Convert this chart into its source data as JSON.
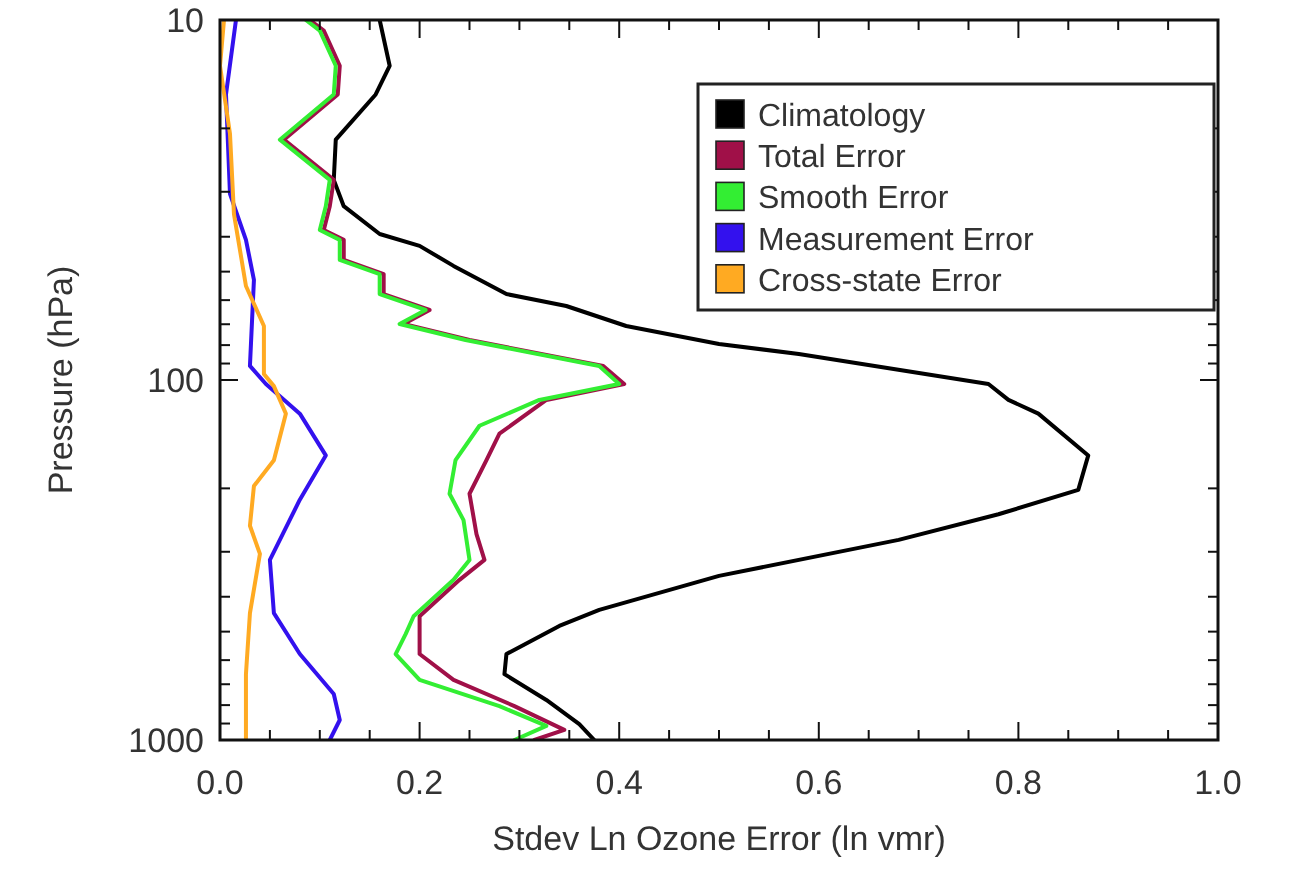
{
  "chart_data": {
    "type": "line",
    "xlabel": "Stdev Ln Ozone Error (ln vmr)",
    "ylabel": "Pressure (hPa)",
    "xlim": [
      0,
      1
    ],
    "xticks": [
      {
        "value": 0,
        "label": "0.0"
      },
      {
        "value": 0.05,
        "label": null
      },
      {
        "value": 0.1,
        "label": null
      },
      {
        "value": 0.15,
        "label": null
      },
      {
        "value": 0.2,
        "label": "0.2"
      },
      {
        "value": 0.25,
        "label": null
      },
      {
        "value": 0.3,
        "label": null
      },
      {
        "value": 0.35,
        "label": null
      },
      {
        "value": 0.4,
        "label": "0.4"
      },
      {
        "value": 0.45,
        "label": null
      },
      {
        "value": 0.5,
        "label": null
      },
      {
        "value": 0.55,
        "label": null
      },
      {
        "value": 0.6,
        "label": "0.6"
      },
      {
        "value": 0.65,
        "label": null
      },
      {
        "value": 0.7,
        "label": null
      },
      {
        "value": 0.75,
        "label": null
      },
      {
        "value": 0.8,
        "label": "0.8"
      },
      {
        "value": 0.85,
        "label": null
      },
      {
        "value": 0.9,
        "label": null
      },
      {
        "value": 0.95,
        "label": null
      },
      {
        "value": 1,
        "label": "1.0"
      }
    ],
    "ylim": [
      1000,
      10
    ],
    "log": "y",
    "yticks": [
      10,
      {
        "value": 20,
        "label": null
      },
      {
        "value": 30,
        "label": null
      },
      {
        "value": 40,
        "label": null
      },
      {
        "value": 50,
        "label": null
      },
      {
        "value": 60,
        "label": null
      },
      {
        "value": 70,
        "label": null
      },
      {
        "value": 80,
        "label": null
      },
      {
        "value": 90,
        "label": null
      },
      100,
      {
        "value": 200,
        "label": null
      },
      {
        "value": 300,
        "label": null
      },
      {
        "value": 400,
        "label": null
      },
      {
        "value": 500,
        "label": null
      },
      {
        "value": 600,
        "label": null
      },
      {
        "value": 700,
        "label": null
      },
      {
        "value": 800,
        "label": null
      },
      {
        "value": 900,
        "label": null
      },
      1000
    ],
    "grid": false,
    "legend": "top right",
    "marker": "none",
    "line_style": "solid",
    "series": [
      {
        "name": "Climatology",
        "color": "#000000",
        "x": [
          0.16,
          0.17,
          0.156,
          0.116,
          0.114,
          0.124,
          0.16,
          0.2,
          0.234,
          0.287,
          0.347,
          0.407,
          0.5,
          0.58,
          0.77,
          0.79,
          0.82,
          0.87,
          0.86,
          0.78,
          0.68,
          0.5,
          0.38,
          0.34,
          0.287,
          0.285,
          0.327,
          0.36,
          0.375
        ],
        "values": [
          10,
          13.4,
          16.1,
          21.5,
          27.8,
          32.9,
          39.3,
          42.4,
          48.2,
          57.7,
          62.3,
          70.8,
          79.4,
          84.7,
          102.6,
          113.6,
          124,
          162,
          202,
          236,
          278,
          350,
          435,
          482,
          577,
          656,
          774,
          903,
          1000
        ]
      },
      {
        "name": "Total Error",
        "color": "#a01048",
        "x": [
          0.09,
          0.104,
          0.12,
          0.118,
          0.064,
          0.114,
          0.11,
          0.104,
          0.124,
          0.124,
          0.164,
          0.164,
          0.21,
          0.184,
          0.25,
          0.384,
          0.405,
          0.327,
          0.28,
          0.267,
          0.25,
          0.257,
          0.265,
          0.24,
          0.2,
          0.2,
          0.234,
          0.295,
          0.345,
          0.315
        ],
        "values": [
          10,
          10.7,
          13.4,
          16.1,
          21.5,
          27.8,
          32.9,
          38.3,
          40.8,
          46.4,
          50.8,
          57.7,
          63.9,
          69.9,
          77.4,
          91.4,
          102.6,
          113.6,
          141,
          167,
          207,
          268,
          316,
          359,
          453,
          577,
          681,
          805,
          937,
          1000
        ]
      },
      {
        "name": "Smooth Error",
        "color": "#33ee33",
        "x": [
          0.086,
          0.1,
          0.116,
          0.114,
          0.06,
          0.11,
          0.106,
          0.1,
          0.12,
          0.12,
          0.16,
          0.16,
          0.206,
          0.18,
          0.246,
          0.38,
          0.4,
          0.32,
          0.26,
          0.236,
          0.23,
          0.244,
          0.25,
          0.234,
          0.194,
          0.186,
          0.176,
          0.2,
          0.28,
          0.327,
          0.295
        ],
        "values": [
          10,
          10.7,
          13.4,
          16.1,
          21.5,
          27.8,
          32.9,
          38.3,
          40.8,
          46.4,
          50.8,
          57.7,
          63.9,
          69.9,
          77.4,
          91.4,
          102.6,
          113.6,
          134,
          167,
          207,
          245,
          316,
          359,
          453,
          508,
          577,
          681,
          805,
          914,
          1000
        ]
      },
      {
        "name": "Measurement Error",
        "color": "#3311ee",
        "x": [
          0.016,
          0.006,
          0.01,
          0.026,
          0.034,
          0.03,
          0.046,
          0.08,
          0.106,
          0.08,
          0.05,
          0.054,
          0.08,
          0.114,
          0.12,
          0.11
        ],
        "values": [
          10,
          16.1,
          30.4,
          40.8,
          52.7,
          91.4,
          102.6,
          124,
          162,
          215,
          316,
          444,
          577,
          745,
          880,
          1000
        ]
      },
      {
        "name": "Cross-state Error",
        "color": "#ffaa22",
        "x": [
          0.004,
          0,
          0.01,
          0.014,
          0.026,
          0.044,
          0.044,
          0.054,
          0.066,
          0.054,
          0.034,
          0.03,
          0.04,
          0.03,
          0.026,
          0.026
        ],
        "values": [
          10,
          13.4,
          20.7,
          34.6,
          54.8,
          70.8,
          96.2,
          104,
          124,
          167,
          197,
          254,
          304,
          444,
          656,
          1000
        ]
      }
    ]
  }
}
